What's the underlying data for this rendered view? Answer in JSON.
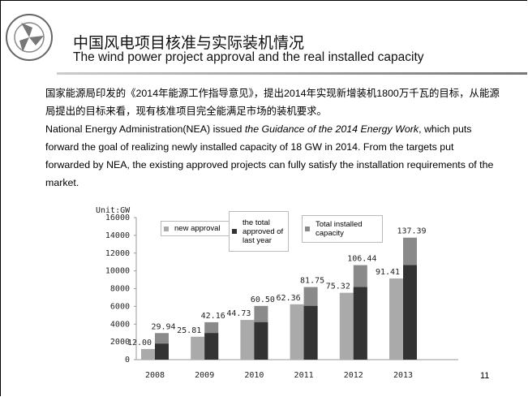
{
  "header": {
    "title": "中国风电项目核准与实际装机情况",
    "subtitle": "The wind power project approval and the real installed capacity"
  },
  "body": {
    "cn": "国家能源局印发的《2014年能源工作指导意见》，提出2014年实现新增装机1800万千瓦的目标，从能源局提出的目标来看，现有核准项目完全能满足市场的装机要求。",
    "en": [
      "National Energy Administration(NEA) issued ",
      "the Guidance of the 2014 Energy Work",
      ", which puts forward the goal of realizing newly installed capacity  of 18 GW in 2014. From the targets put forwarded by NEA, the existing approved projects can fully satisfy the installation requirements of the market."
    ]
  },
  "chart_data": {
    "type": "bar",
    "unit_label": "Unit:GW",
    "categories": [
      "2008",
      "2009",
      "2010",
      "2011",
      "2012",
      "2013"
    ],
    "series": [
      {
        "name": "new approval",
        "color": "#aaaaaa",
        "values": [
          1200,
          2581,
          4473,
          6236,
          7532,
          9141
        ],
        "value_labels": [
          "12.00",
          "25.81",
          "44.73",
          "62.36",
          "75.32",
          "91.41"
        ]
      },
      {
        "name": "the total approved of last year",
        "color": "#333333",
        "values": [
          1800,
          2994,
          4216,
          6050,
          8175,
          10644
        ]
      },
      {
        "name": "Total installed capacity",
        "color": "#8a8a8a",
        "values": [
          2994,
          4216,
          6050,
          8175,
          10644,
          13739
        ],
        "value_labels": [
          "29.94",
          "42.16",
          "60.50",
          "81.75",
          "106.44",
          "137.39"
        ]
      }
    ],
    "ylim": [
      0,
      16000
    ],
    "yticks": [
      0,
      2000,
      4000,
      6000,
      8000,
      10000,
      12000,
      14000,
      16000
    ],
    "grid": false
  },
  "page_number": "11"
}
